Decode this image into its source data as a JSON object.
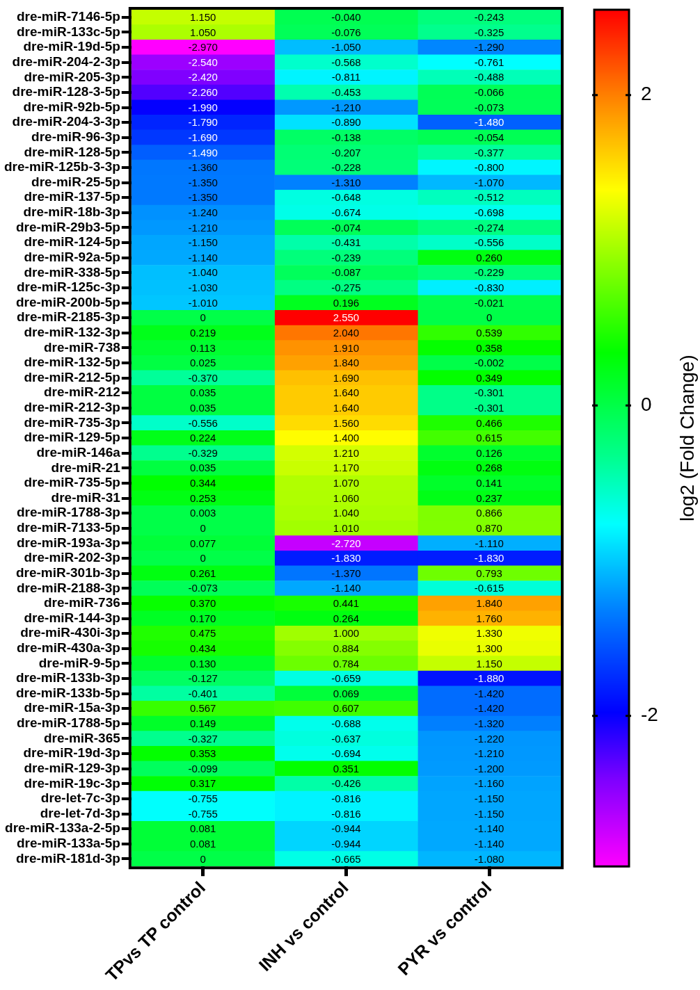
{
  "chart_data": {
    "type": "heatmap",
    "clabel": "log2 (Fold Change)",
    "clim": [
      -2.97,
      2.55
    ],
    "cticks": [
      -2,
      0,
      2
    ],
    "categories": [
      "TPvs TP control",
      "INH vs control",
      "PYR vs control"
    ],
    "y_categories": [
      "dre-miR-7146-5p",
      "dre-miR-133c-5p",
      "dre-miR-19d-5p",
      "dre-miR-204-2-3p",
      "dre-miR-205-3p",
      "dre-miR-128-3-5p",
      "dre-miR-92b-5p",
      "dre-miR-204-3-3p",
      "dre-miR-96-3p",
      "dre-miR-128-5p",
      "dre-miR-125b-3-3p",
      "dre-miR-25-5p",
      "dre-miR-137-5p",
      "dre-miR-18b-3p",
      "dre-miR-29b3-5p",
      "dre-miR-124-5p",
      "dre-miR-92a-5p",
      "dre-miR-338-5p",
      "dre-miR-125c-3p",
      "dre-miR-200b-5p",
      "dre-miR-2185-3p",
      "dre-miR-132-3p",
      "dre-miR-738",
      "dre-miR-132-5p",
      "dre-miR-212-5p",
      "dre-miR-212",
      "dre-miR-212-3p",
      "dre-miR-735-3p",
      "dre-miR-129-5p",
      "dre-miR-146a",
      "dre-miR-21",
      "dre-miR-735-5p",
      "dre-miR-31",
      "dre-miR-1788-3p",
      "dre-miR-7133-5p",
      "dre-miR-193a-3p",
      "dre-miR-202-3p",
      "dre-miR-301b-3p",
      "dre-miR-2188-3p",
      "dre-miR-736",
      "dre-miR-144-3p",
      "dre-miR-430i-3p",
      "dre-miR-430a-3p",
      "dre-miR-9-5p",
      "dre-miR-133b-3p",
      "dre-miR-133b-5p",
      "dre-miR-15a-3p",
      "dre-miR-1788-5p",
      "dre-miR-365",
      "dre-miR-19d-3p",
      "dre-miR-129-3p",
      "dre-miR-19c-3p",
      "dre-let-7c-3p",
      "dre-let-7d-3p",
      "dre-miR-133a-2-5p",
      "dre-miR-133a-5p",
      "dre-miR-181d-3p"
    ],
    "cells": [
      [
        1.15,
        -0.04,
        -0.243
      ],
      [
        1.05,
        -0.076,
        -0.325
      ],
      [
        -2.97,
        -1.05,
        -1.29
      ],
      [
        -2.54,
        -0.568,
        -0.761
      ],
      [
        -2.42,
        -0.811,
        -0.488
      ],
      [
        -2.26,
        -0.453,
        -0.066
      ],
      [
        -1.99,
        -1.21,
        -0.073
      ],
      [
        -1.79,
        -0.89,
        -1.48
      ],
      [
        -1.69,
        -0.138,
        -0.054
      ],
      [
        -1.49,
        -0.207,
        -0.377
      ],
      [
        -1.36,
        -0.228,
        -0.8
      ],
      [
        -1.35,
        -1.31,
        -1.07
      ],
      [
        -1.35,
        -0.648,
        -0.512
      ],
      [
        -1.24,
        -0.674,
        -0.698
      ],
      [
        -1.21,
        -0.074,
        -0.274
      ],
      [
        -1.15,
        -0.431,
        -0.556
      ],
      [
        -1.14,
        -0.239,
        0.26
      ],
      [
        -1.04,
        -0.087,
        -0.229
      ],
      [
        -1.03,
        -0.275,
        -0.83
      ],
      [
        -1.01,
        0.196,
        -0.021
      ],
      [
        0,
        2.55,
        0
      ],
      [
        0.219,
        2.04,
        0.539
      ],
      [
        0.113,
        1.91,
        0.358
      ],
      [
        0.025,
        1.84,
        -0.002
      ],
      [
        -0.37,
        1.69,
        0.349
      ],
      [
        0.035,
        1.64,
        -0.301
      ],
      [
        0.035,
        1.64,
        -0.301
      ],
      [
        -0.556,
        1.56,
        0.466
      ],
      [
        0.224,
        1.4,
        0.615
      ],
      [
        -0.329,
        1.21,
        0.126
      ],
      [
        0.035,
        1.17,
        0.268
      ],
      [
        0.344,
        1.07,
        0.141
      ],
      [
        0.253,
        1.06,
        0.237
      ],
      [
        0.003,
        1.04,
        0.866
      ],
      [
        0,
        1.01,
        0.87
      ],
      [
        0.077,
        -2.72,
        -1.11
      ],
      [
        0,
        -1.83,
        -1.83
      ],
      [
        0.261,
        -1.37,
        0.793
      ],
      [
        -0.073,
        -1.14,
        -0.615
      ],
      [
        0.37,
        0.441,
        1.84
      ],
      [
        0.17,
        0.264,
        1.76
      ],
      [
        0.475,
        1.0,
        1.33
      ],
      [
        0.434,
        0.884,
        1.3
      ],
      [
        0.13,
        0.784,
        1.15
      ],
      [
        -0.127,
        -0.659,
        -1.88
      ],
      [
        -0.401,
        0.069,
        -1.42
      ],
      [
        0.567,
        0.607,
        -1.42
      ],
      [
        0.149,
        -0.688,
        -1.32
      ],
      [
        -0.327,
        -0.637,
        -1.22
      ],
      [
        0.353,
        -0.694,
        -1.21
      ],
      [
        -0.099,
        0.351,
        -1.2
      ],
      [
        0.317,
        -0.426,
        -1.16
      ],
      [
        -0.755,
        -0.816,
        -1.15
      ],
      [
        -0.755,
        -0.816,
        -1.15
      ],
      [
        0.081,
        -0.944,
        -1.14
      ],
      [
        0.081,
        -0.944,
        -1.14
      ],
      [
        0,
        -0.665,
        -1.08
      ]
    ],
    "cell_labels": [
      [
        "1.150",
        "-0.040",
        "-0.243"
      ],
      [
        "1.050",
        "-0.076",
        "-0.325"
      ],
      [
        "-2.970",
        "-1.050",
        "-1.290"
      ],
      [
        "-2.540",
        "-0.568",
        "-0.761"
      ],
      [
        "-2.420",
        "-0.811",
        "-0.488"
      ],
      [
        "-2.260",
        "-0.453",
        "-0.066"
      ],
      [
        "-1.990",
        "-1.210",
        "-0.073"
      ],
      [
        "-1.790",
        "-0.890",
        "-1.480"
      ],
      [
        "-1.690",
        "-0.138",
        "-0.054"
      ],
      [
        "-1.490",
        "-0.207",
        "-0.377"
      ],
      [
        "-1.360",
        "-0.228",
        "-0.800"
      ],
      [
        "-1.350",
        "-1.310",
        "-1.070"
      ],
      [
        "-1.350",
        "-0.648",
        "-0.512"
      ],
      [
        "-1.240",
        "-0.674",
        "-0.698"
      ],
      [
        "-1.210",
        "-0.074",
        "-0.274"
      ],
      [
        "-1.150",
        "-0.431",
        "-0.556"
      ],
      [
        "-1.140",
        "-0.239",
        "0.260"
      ],
      [
        "-1.040",
        "-0.087",
        "-0.229"
      ],
      [
        "-1.030",
        "-0.275",
        "-0.830"
      ],
      [
        "-1.010",
        "0.196",
        "-0.021"
      ],
      [
        "0",
        "2.550",
        "0"
      ],
      [
        "0.219",
        "2.040",
        "0.539"
      ],
      [
        "0.113",
        "1.910",
        "0.358"
      ],
      [
        "0.025",
        "1.840",
        "-0.002"
      ],
      [
        "-0.370",
        "1.690",
        "0.349"
      ],
      [
        "0.035",
        "1.640",
        "-0.301"
      ],
      [
        "0.035",
        "1.640",
        "-0.301"
      ],
      [
        "-0.556",
        "1.560",
        "0.466"
      ],
      [
        "0.224",
        "1.400",
        "0.615"
      ],
      [
        "-0.329",
        "1.210",
        "0.126"
      ],
      [
        "0.035",
        "1.170",
        "0.268"
      ],
      [
        "0.344",
        "1.070",
        "0.141"
      ],
      [
        "0.253",
        "1.060",
        "0.237"
      ],
      [
        "0.003",
        "1.040",
        "0.866"
      ],
      [
        "0",
        "1.010",
        "0.870"
      ],
      [
        "0.077",
        "-2.720",
        "-1.110"
      ],
      [
        "0",
        "-1.830",
        "-1.830"
      ],
      [
        "0.261",
        "-1.370",
        "0.793"
      ],
      [
        "-0.073",
        "-1.140",
        "-0.615"
      ],
      [
        "0.370",
        "0.441",
        "1.840"
      ],
      [
        "0.170",
        "0.264",
        "1.760"
      ],
      [
        "0.475",
        "1.000",
        "1.330"
      ],
      [
        "0.434",
        "0.884",
        "1.300"
      ],
      [
        "0.130",
        "0.784",
        "1.150"
      ],
      [
        "-0.127",
        "-0.659",
        "-1.880"
      ],
      [
        "-0.401",
        "0.069",
        "-1.420"
      ],
      [
        "0.567",
        "0.607",
        "-1.420"
      ],
      [
        "0.149",
        "-0.688",
        "-1.320"
      ],
      [
        "-0.327",
        "-0.637",
        "-1.220"
      ],
      [
        "0.353",
        "-0.694",
        "-1.210"
      ],
      [
        "-0.099",
        "0.351",
        "-1.200"
      ],
      [
        "0.317",
        "-0.426",
        "-1.160"
      ],
      [
        "-0.755",
        "-0.816",
        "-1.150"
      ],
      [
        "-0.755",
        "-0.816",
        "-1.150"
      ],
      [
        "0.081",
        "-0.944",
        "-1.140"
      ],
      [
        "0.081",
        "-0.944",
        "-1.140"
      ],
      [
        "0",
        "-0.665",
        "-1.080"
      ]
    ]
  }
}
